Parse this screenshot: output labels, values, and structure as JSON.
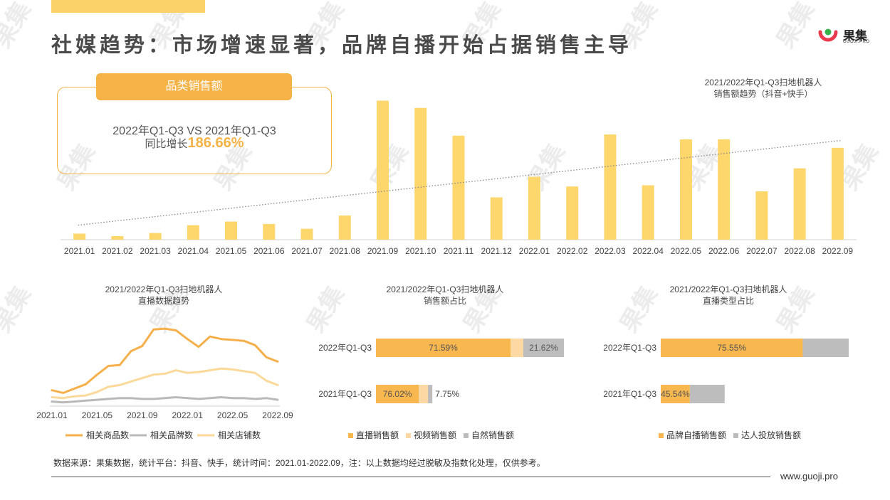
{
  "title": "社媒趋势：市场增速显著，品牌自播开始占据销售主导",
  "logo": {
    "name": "果集",
    "sub": "GUOJI.PRO"
  },
  "watermark": {
    "text": "果集"
  },
  "summary_card": {
    "tab_label": "品类销售额",
    "comparison": "2022年Q1-Q3 VS 2021年Q1-Q3",
    "growth_label": "同比增长",
    "growth_value": "186.66%"
  },
  "chart_data": [
    {
      "type": "bar",
      "title": "2021/2022年Q1-Q3扫地机器人",
      "subtitle": "销售额趋势（抖音+快手）",
      "categories": [
        "2021.01",
        "2021.02",
        "2021.03",
        "2021.04",
        "2021.05",
        "2021.06",
        "2021.07",
        "2021.08",
        "2021.09",
        "2021.10",
        "2021.11",
        "2021.12",
        "2022.01",
        "2022.02",
        "2022.03",
        "2022.04",
        "2022.05",
        "2022.06",
        "2022.07",
        "2022.08",
        "2022.09"
      ],
      "values": [
        5,
        3,
        5.5,
        12,
        15,
        13,
        9,
        20,
        115,
        109,
        86,
        35,
        52,
        44,
        87,
        45,
        83,
        83,
        40,
        59,
        76
      ],
      "ylim": [
        0,
        120
      ],
      "trendline": {
        "style": "dotted",
        "start": 12,
        "end": 82
      },
      "color": "#fdd66c"
    },
    {
      "type": "line",
      "title": "2021/2022年Q1-Q3扫地机器人",
      "subtitle": "直播数据趋势",
      "x": [
        "2021.01",
        "2021.02",
        "2021.03",
        "2021.04",
        "2021.05",
        "2021.06",
        "2021.07",
        "2021.08",
        "2021.09",
        "2021.10",
        "2021.11",
        "2021.12",
        "2022.01",
        "2022.02",
        "2022.03",
        "2022.04",
        "2022.05",
        "2022.06",
        "2022.07",
        "2022.08",
        "2022.09"
      ],
      "xticks": [
        "2021.01",
        "2021.05",
        "2021.09",
        "2022.01",
        "2022.05",
        "2022.09"
      ],
      "ylim": [
        0,
        100
      ],
      "series": [
        {
          "name": "相关商品数",
          "color": "#f5b04c",
          "values": [
            15,
            12,
            17,
            22,
            33,
            43,
            44,
            60,
            66,
            85,
            86,
            84,
            74,
            65,
            77,
            74,
            73,
            72,
            67,
            53,
            48
          ]
        },
        {
          "name": "相关品牌数",
          "color": "#b9b9b9",
          "values": [
            2,
            1,
            2,
            3,
            4,
            5,
            6,
            6,
            5,
            5,
            6,
            7,
            6,
            5,
            6,
            7,
            6,
            6,
            5,
            6,
            4
          ]
        },
        {
          "name": "相关店铺数",
          "color": "#fbd99a",
          "values": [
            7,
            6,
            8,
            9,
            13,
            19,
            21,
            25,
            29,
            33,
            34,
            38,
            35,
            36,
            38,
            40,
            39,
            37,
            35,
            26,
            21
          ]
        }
      ]
    },
    {
      "type": "bar",
      "stacked": true,
      "orientation": "horizontal",
      "title": "2021/2022年Q1-Q3扫地机器人",
      "subtitle": "销售额占比",
      "categories": [
        "2022年Q1-Q3",
        "2021年Q1-Q3"
      ],
      "series": [
        {
          "name": "直播销售额",
          "color": "#f8b74f",
          "values": [
            71.59,
            76.02
          ]
        },
        {
          "name": "视频销售额",
          "color": "#fcd9a2",
          "values": [
            6.79,
            16.23
          ]
        },
        {
          "name": "自然销售额",
          "color": "#bdbdbd",
          "values": [
            21.62,
            7.75
          ]
        }
      ],
      "labels": [
        [
          "71.59%",
          "",
          "21.62%"
        ],
        [
          "76.02%",
          "",
          "7.75%"
        ]
      ],
      "scale": [
        1.0,
        0.3
      ]
    },
    {
      "type": "bar",
      "stacked": true,
      "orientation": "horizontal",
      "title": "2021/2022年Q1-Q3扫地机器人",
      "subtitle": "直播类型占比",
      "categories": [
        "2022年Q1-Q3",
        "2021年Q1-Q3"
      ],
      "series": [
        {
          "name": "品牌自播销售额",
          "color": "#f8b74f",
          "values": [
            75.55,
            45.54
          ]
        },
        {
          "name": "达人投放销售额",
          "color": "#bdbdbd",
          "values": [
            24.45,
            54.46
          ]
        }
      ],
      "labels": [
        [
          "75.55%",
          ""
        ],
        [
          "45.54%",
          ""
        ]
      ],
      "scale": [
        1.0,
        0.34
      ]
    }
  ],
  "footer": {
    "source": "数据来源：果集数据，统计平台：抖音、快手，统计时间：2021.01-2022.09，注：以上数据均经过脱敏及指数化处理，仅供参考。",
    "website": "www.guoji.pro"
  }
}
